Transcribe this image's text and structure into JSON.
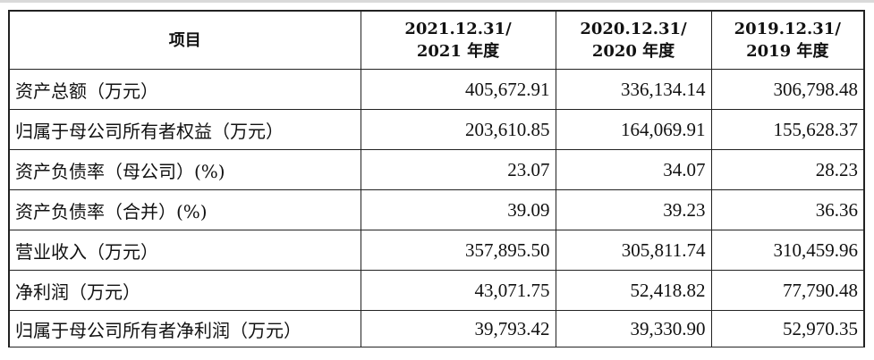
{
  "table": {
    "headers": {
      "item": "项目",
      "col1_line1": "2021.12.31/",
      "col1_line2": "2021 年度",
      "col2_line1": "2020.12.31/",
      "col2_line2": "2020 年度",
      "col3_line1": "2019.12.31/",
      "col3_line2": "2019 年度"
    },
    "rows": [
      {
        "label": "资产总额（万元）",
        "v2021": "405,672.91",
        "v2020": "336,134.14",
        "v2019": "306,798.48"
      },
      {
        "label": "归属于母公司所有者权益（万元）",
        "v2021": "203,610.85",
        "v2020": "164,069.91",
        "v2019": "155,628.37"
      },
      {
        "label": "资产负债率（母公司）(%)",
        "v2021": "23.07",
        "v2020": "34.07",
        "v2019": "28.23"
      },
      {
        "label": "资产负债率（合并）(%)",
        "v2021": "39.09",
        "v2020": "39.23",
        "v2019": "36.36"
      },
      {
        "label": "营业收入（万元）",
        "v2021": "357,895.50",
        "v2020": "305,811.74",
        "v2019": "310,459.96"
      },
      {
        "label": "净利润（万元）",
        "v2021": "43,071.75",
        "v2020": "52,418.82",
        "v2019": "77,790.48"
      },
      {
        "label": "归属于母公司所有者净利润（万元）",
        "v2021": "39,793.42",
        "v2020": "39,330.90",
        "v2019": "52,970.35"
      }
    ]
  }
}
